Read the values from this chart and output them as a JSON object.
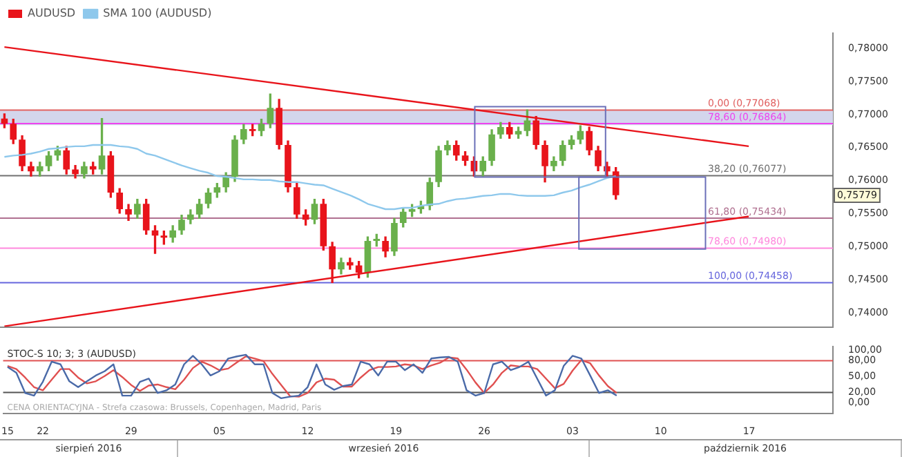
{
  "chart_data": [
    {
      "type": "candlestick",
      "categories": [
        "15",
        null,
        null,
        null,
        "22",
        null,
        null,
        null,
        null,
        null,
        null,
        null,
        null,
        null,
        "29",
        null,
        null,
        null,
        null,
        null,
        null,
        null,
        null,
        null,
        "05",
        null,
        null,
        null,
        null,
        null,
        null,
        null,
        null,
        null,
        "12",
        null,
        null,
        null,
        null,
        null,
        null,
        null,
        null,
        null,
        "19",
        null,
        null,
        null,
        null,
        null,
        null,
        null,
        null,
        null,
        "26",
        null,
        null,
        null,
        null,
        null,
        null,
        null,
        null,
        null,
        "03",
        null,
        null,
        null,
        null,
        null,
        null,
        null,
        null,
        null,
        "10",
        null,
        null,
        null,
        null,
        null,
        null,
        null,
        null,
        null,
        "17",
        null,
        null,
        null,
        null,
        null,
        null,
        null,
        null,
        null
      ],
      "series": [
        {
          "type": "candlestick",
          "name": "AUDUSD",
          "ohlc": [
            [
              0.7694,
              0.7701,
              0.768,
              0.7686
            ],
            [
              0.7686,
              0.7693,
              0.7656,
              0.7662
            ],
            [
              0.7662,
              0.7668,
              0.7615,
              0.7622
            ],
            [
              0.7622,
              0.7628,
              0.7607,
              0.7614
            ],
            [
              0.7614,
              0.7628,
              0.7607,
              0.7622
            ],
            [
              0.7622,
              0.7644,
              0.7615,
              0.7638
            ],
            [
              0.7638,
              0.7652,
              0.7631,
              0.7646
            ],
            [
              0.7646,
              0.7652,
              0.761,
              0.7617
            ],
            [
              0.7617,
              0.7623,
              0.7604,
              0.761
            ],
            [
              0.761,
              0.7628,
              0.7604,
              0.7622
            ],
            [
              0.7622,
              0.7628,
              0.761,
              0.7617
            ],
            [
              0.7617,
              0.7694,
              0.761,
              0.7638
            ],
            [
              0.7638,
              0.7644,
              0.7575,
              0.7582
            ],
            [
              0.7582,
              0.7588,
              0.7551,
              0.7557
            ],
            [
              0.7557,
              0.7564,
              0.754,
              0.7549
            ],
            [
              0.7549,
              0.7572,
              0.7543,
              0.7565
            ],
            [
              0.7565,
              0.7572,
              0.7519,
              0.7525
            ],
            [
              0.7525,
              0.7532,
              0.749,
              0.7517
            ],
            [
              0.7517,
              0.7524,
              0.7504,
              0.7514
            ],
            [
              0.7514,
              0.7532,
              0.7507,
              0.7525
            ],
            [
              0.7525,
              0.7548,
              0.7519,
              0.7541
            ],
            [
              0.7541,
              0.7556,
              0.7535,
              0.7549
            ],
            [
              0.7549,
              0.7572,
              0.7543,
              0.7565
            ],
            [
              0.7565,
              0.7588,
              0.7559,
              0.7582
            ],
            [
              0.7582,
              0.7596,
              0.7575,
              0.759
            ],
            [
              0.759,
              0.7612,
              0.7583,
              0.7606
            ],
            [
              0.7606,
              0.7668,
              0.7599,
              0.7662
            ],
            [
              0.7662,
              0.7685,
              0.7656,
              0.7678
            ],
            [
              0.7678,
              0.7685,
              0.7668,
              0.7675
            ],
            [
              0.7675,
              0.7693,
              0.7668,
              0.7686
            ],
            [
              0.7686,
              0.7731,
              0.768,
              0.771
            ],
            [
              0.771,
              0.7723,
              0.7648,
              0.7654
            ],
            [
              0.7654,
              0.766,
              0.7583,
              0.759
            ],
            [
              0.759,
              0.7596,
              0.7543,
              0.7549
            ],
            [
              0.7549,
              0.7556,
              0.7533,
              0.7541
            ],
            [
              0.7541,
              0.7572,
              0.7535,
              0.7565
            ],
            [
              0.7565,
              0.7572,
              0.7495,
              0.7501
            ],
            [
              0.7501,
              0.7507,
              0.7446,
              0.7466
            ],
            [
              0.7466,
              0.7483,
              0.7459,
              0.7477
            ],
            [
              0.7477,
              0.7483,
              0.7466,
              0.7472
            ],
            [
              0.7472,
              0.7478,
              0.7453,
              0.7461
            ],
            [
              0.7461,
              0.7515,
              0.7454,
              0.7509
            ],
            [
              0.7509,
              0.7519,
              0.7501,
              0.7512
            ],
            [
              0.7509,
              0.7515,
              0.7485,
              0.7493
            ],
            [
              0.7493,
              0.7543,
              0.7487,
              0.7536
            ],
            [
              0.7536,
              0.7559,
              0.753,
              0.7553
            ],
            [
              0.7553,
              0.7564,
              0.7546,
              0.7557
            ],
            [
              0.7557,
              0.7569,
              0.7551,
              0.7562
            ],
            [
              0.7562,
              0.7604,
              0.7556,
              0.7598
            ],
            [
              0.7598,
              0.7652,
              0.7591,
              0.7646
            ],
            [
              0.7646,
              0.766,
              0.7639,
              0.7654
            ],
            [
              0.7654,
              0.766,
              0.7631,
              0.7638
            ],
            [
              0.7638,
              0.7644,
              0.7623,
              0.763
            ],
            [
              0.763,
              0.7636,
              0.7607,
              0.7614
            ],
            [
              0.7614,
              0.7636,
              0.7607,
              0.763
            ],
            [
              0.763,
              0.7677,
              0.7623,
              0.767
            ],
            [
              0.767,
              0.7688,
              0.7664,
              0.7681
            ],
            [
              0.7681,
              0.7688,
              0.7664,
              0.767
            ],
            [
              0.767,
              0.7681,
              0.7664,
              0.7675
            ],
            [
              0.7675,
              0.7707,
              0.7668,
              0.7691
            ],
            [
              0.7691,
              0.7697,
              0.7648,
              0.7654
            ],
            [
              0.7654,
              0.766,
              0.7598,
              0.7622
            ],
            [
              0.7622,
              0.7636,
              0.7615,
              0.763
            ],
            [
              0.763,
              0.766,
              0.7623,
              0.7654
            ],
            [
              0.7654,
              0.7668,
              0.7648,
              0.7662
            ],
            [
              0.7662,
              0.7683,
              0.7656,
              0.7675
            ],
            [
              0.7675,
              0.7681,
              0.7639,
              0.7646
            ],
            [
              0.7646,
              0.7652,
              0.7615,
              0.7622
            ],
            [
              0.7622,
              0.7628,
              0.7607,
              0.7614
            ],
            [
              0.7614,
              0.762,
              0.7572,
              0.7578
            ],
            null,
            null,
            null,
            null,
            null,
            null,
            null,
            null,
            null,
            null,
            null,
            null,
            null,
            null,
            null,
            null,
            null,
            null,
            null,
            null,
            null,
            null,
            null,
            null
          ],
          "colors": [
            "#e8141b",
            "#e8141b",
            "#e8141b",
            "#e8141b",
            "#6ab04c",
            "#6ab04c",
            "#6ab04c",
            "#e8141b",
            "#e8141b",
            "#6ab04c",
            "#e8141b",
            "#6ab04c",
            "#e8141b",
            "#e8141b",
            "#e8141b",
            "#6ab04c",
            "#e8141b",
            "#e8141b",
            "#e8141b",
            "#6ab04c",
            "#6ab04c",
            "#6ab04c",
            "#6ab04c",
            "#6ab04c",
            "#6ab04c",
            "#6ab04c",
            "#6ab04c",
            "#6ab04c",
            "#e8141b",
            "#6ab04c",
            "#6ab04c",
            "#e8141b",
            "#e8141b",
            "#e8141b",
            "#e8141b",
            "#6ab04c",
            "#e8141b",
            "#e8141b",
            "#6ab04c",
            "#e8141b",
            "#e8141b",
            "#6ab04c",
            "#6ab04c",
            "#e8141b",
            "#6ab04c",
            "#6ab04c",
            "#6ab04c",
            "#6ab04c",
            "#6ab04c",
            "#6ab04c",
            "#6ab04c",
            "#e8141b",
            "#e8141b",
            "#e8141b",
            "#6ab04c",
            "#6ab04c",
            "#6ab04c",
            "#e8141b",
            "#6ab04c",
            "#6ab04c",
            "#e8141b",
            "#e8141b",
            "#6ab04c",
            "#6ab04c",
            "#6ab04c",
            "#6ab04c",
            "#e8141b",
            "#e8141b",
            "#e8141b",
            "#e8141b",
            null,
            null,
            null,
            null,
            null,
            null,
            null,
            null,
            null,
            null,
            null,
            null,
            null,
            null,
            null,
            null,
            null,
            null,
            null,
            null,
            null,
            null,
            null,
            null
          ]
        },
        {
          "type": "line",
          "name": "SMA 100 (AUDUSD)",
          "color": "#8ec8ec",
          "values": [
            0.7636,
            0.7638,
            0.7639,
            0.7641,
            0.7644,
            0.7648,
            0.7649,
            0.7651,
            0.7652,
            0.7652,
            0.7654,
            0.7654,
            0.7654,
            0.7652,
            0.7651,
            0.7648,
            0.7641,
            0.7638,
            0.7633,
            0.7628,
            0.7623,
            0.7619,
            0.7615,
            0.7612,
            0.7607,
            0.7606,
            0.7604,
            0.7602,
            0.7602,
            0.7601,
            0.7601,
            0.7599,
            0.7598,
            0.7598,
            0.7596,
            0.7594,
            0.7593,
            0.7588,
            0.7583,
            0.7578,
            0.7572,
            0.7565,
            0.7561,
            0.7557,
            0.7557,
            0.7559,
            0.7559,
            0.7562,
            0.7564,
            0.7565,
            0.7569,
            0.7572,
            0.7573,
            0.7575,
            0.7577,
            0.7578,
            0.758,
            0.758,
            0.7578,
            0.7577,
            0.7577,
            0.7577,
            0.7578,
            0.7582,
            0.7585,
            0.759,
            0.7594,
            0.7599,
            0.7604,
            0.7607,
            null,
            null,
            null,
            null,
            null,
            null,
            null,
            null,
            null,
            null,
            null,
            null,
            null,
            null,
            null,
            null,
            null,
            null,
            null,
            null,
            null,
            null,
            null,
            null
          ]
        },
        {
          "type": "line",
          "color": "#e8141b",
          "x": [
            "15",
            "17"
          ],
          "values": [
            0.7802,
            0.7652
          ]
        },
        {
          "type": "line",
          "color": "#e8141b",
          "x": [
            "15",
            "17"
          ],
          "values": [
            0.738,
            0.7546
          ]
        }
      ],
      "ylim": [
        0.7379,
        0.7823
      ],
      "yticks": [
        {
          "value": 0.74,
          "label": "0,74000"
        },
        {
          "value": 0.745,
          "label": "0,74500"
        },
        {
          "value": 0.75,
          "label": "0,75000"
        },
        {
          "value": 0.755,
          "label": "0,75500"
        },
        {
          "value": 0.76,
          "label": "0,76000"
        },
        {
          "value": 0.765,
          "label": "0,76500"
        },
        {
          "value": 0.77,
          "label": "0,77000"
        },
        {
          "value": 0.775,
          "label": "0,77500"
        },
        {
          "value": 0.78,
          "label": "0,78000"
        }
      ],
      "bands": [
        {
          "axis": "y",
          "from": 0.7684,
          "to": 0.7706,
          "color": "#d3d6ec"
        }
      ],
      "ref_lines": [
        {
          "axis": "y",
          "value": 0.77068,
          "label": "0,00 (0,77068)",
          "color": "#e06060"
        },
        {
          "axis": "y",
          "value": 0.76864,
          "label": "78,60 (0,76864)",
          "color": "#ee44ee"
        },
        {
          "axis": "y",
          "value": 0.76077,
          "label": "38,20 (0,76077)",
          "color": "#707070"
        },
        {
          "axis": "y",
          "value": 0.75434,
          "label": "61,80 (0,75434)",
          "color": "#b07090"
        },
        {
          "axis": "y",
          "value": 0.7498,
          "label": "78,60 (0,74980)",
          "color": "#ff88dd"
        },
        {
          "axis": "y",
          "value": 0.74458,
          "label": "100,00 (0,74458)",
          "color": "#6666dd"
        }
      ],
      "annotations": [
        {
          "text": "0,75779",
          "y": 0.75779
        }
      ],
      "legend": "top left",
      "tick_labels": "y",
      "grid": false
    },
    {
      "type": "line",
      "title": "STOC-S 10; 3; 3 (AUDUSD)",
      "categories": [
        "15",
        null,
        null,
        null,
        "22",
        null,
        null,
        null,
        null,
        null,
        null,
        null,
        null,
        null,
        "29",
        null,
        null,
        null,
        null,
        null,
        null,
        null,
        null,
        null,
        "05",
        null,
        null,
        null,
        null,
        null,
        null,
        null,
        null,
        null,
        "12",
        null,
        null,
        null,
        null,
        null,
        null,
        null,
        null,
        null,
        "19",
        null,
        null,
        null,
        null,
        null,
        null,
        null,
        null,
        null,
        "26",
        null,
        null,
        null,
        null,
        null,
        null,
        null,
        null,
        null,
        "03",
        null,
        null,
        null,
        null,
        null,
        null,
        null,
        null,
        null,
        "10",
        null,
        null,
        null,
        null,
        null,
        null,
        null,
        null,
        null,
        "17",
        null,
        null,
        null,
        null,
        null,
        null,
        null,
        null,
        null
      ],
      "series": [
        {
          "color": "#4a6aa8",
          "values": [
            68,
            57,
            19,
            14,
            40,
            78,
            73,
            41,
            30,
            41,
            52,
            60,
            73,
            14,
            14,
            40,
            46,
            19,
            24,
            35,
            73,
            89,
            73,
            52,
            60,
            84,
            88,
            91,
            73,
            73,
            19,
            9,
            12,
            14,
            30,
            73,
            35,
            25,
            32,
            35,
            78,
            73,
            52,
            78,
            78,
            62,
            73,
            57,
            84,
            86,
            87,
            78,
            24,
            14,
            19,
            73,
            78,
            62,
            68,
            78,
            46,
            14,
            24,
            70,
            89,
            84,
            52,
            19,
            24,
            14,
            null,
            null,
            null,
            null,
            null,
            null,
            null,
            null,
            null,
            null,
            null,
            null,
            null,
            null,
            null,
            null,
            null,
            null,
            null,
            null,
            null,
            null,
            null,
            null
          ]
        },
        {
          "color": "#e05050",
          "values": [
            70,
            64,
            48,
            30,
            24,
            44,
            64,
            64,
            48,
            37,
            41,
            51,
            62,
            49,
            34,
            23,
            33,
            35,
            30,
            26,
            44,
            66,
            78,
            71,
            62,
            65,
            77,
            88,
            84,
            79,
            55,
            34,
            13,
            12,
            19,
            39,
            46,
            44,
            31,
            31,
            48,
            62,
            68,
            68,
            69,
            73,
            71,
            64,
            71,
            76,
            86,
            84,
            63,
            39,
            19,
            35,
            57,
            71,
            69,
            69,
            64,
            46,
            28,
            36,
            61,
            81,
            75,
            52,
            32,
            19,
            null,
            null,
            null,
            null,
            null,
            null,
            null,
            null,
            null,
            null,
            null,
            null,
            null,
            null,
            null,
            null,
            null,
            null,
            null,
            null,
            null,
            null,
            null,
            null
          ]
        }
      ],
      "ylim": [
        -20,
        106
      ],
      "yticks": [
        {
          "value": 0,
          "label": "0,00"
        },
        {
          "value": 20,
          "label": "20,00"
        },
        {
          "value": 50,
          "label": "50,00"
        },
        {
          "value": 80,
          "label": "80,00"
        },
        {
          "value": 100,
          "label": "100,00"
        }
      ],
      "ref_lines": [
        {
          "axis": "y",
          "value": 80,
          "color": "#e05050"
        },
        {
          "axis": "y",
          "value": 20,
          "color": "#555555"
        }
      ],
      "annotations": [
        "CENA ORIENTACYJNA - Strefa czasowa: Brussels, Copenhagen, Madrid, Paris",
        "sierpień 2016",
        "wrzesień 2016",
        "październik 2016"
      ],
      "grid": false
    }
  ]
}
